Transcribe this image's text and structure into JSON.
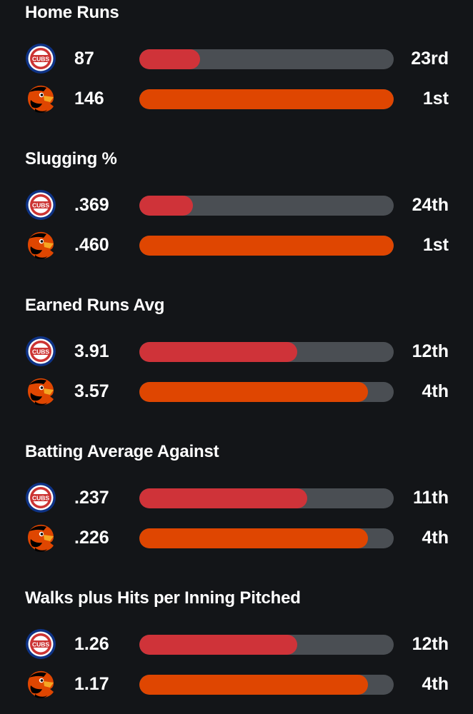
{
  "teams": {
    "cubs": {
      "logo_icon": "cubs-logo-icon",
      "logo_text": "CUBS",
      "bar_color": "#cf3339"
    },
    "orioles": {
      "logo_icon": "orioles-logo-icon",
      "bar_color": "#df4601"
    }
  },
  "colors": {
    "background": "#131518",
    "track": "#4a4e53"
  },
  "stats": [
    {
      "title": "Home Runs",
      "rows": [
        {
          "team": "cubs",
          "value": "87",
          "fill_fraction": 0.24,
          "rank": "23rd"
        },
        {
          "team": "orioles",
          "value": "146",
          "fill_fraction": 1.0,
          "rank": "1st"
        }
      ]
    },
    {
      "title": "Slugging %",
      "rows": [
        {
          "team": "cubs",
          "value": ".369",
          "fill_fraction": 0.21,
          "rank": "24th"
        },
        {
          "team": "orioles",
          "value": ".460",
          "fill_fraction": 1.0,
          "rank": "1st"
        }
      ]
    },
    {
      "title": "Earned Runs Avg",
      "rows": [
        {
          "team": "cubs",
          "value": "3.91",
          "fill_fraction": 0.62,
          "rank": "12th"
        },
        {
          "team": "orioles",
          "value": "3.57",
          "fill_fraction": 0.9,
          "rank": "4th"
        }
      ]
    },
    {
      "title": "Batting Average Against",
      "rows": [
        {
          "team": "cubs",
          "value": ".237",
          "fill_fraction": 0.66,
          "rank": "11th"
        },
        {
          "team": "orioles",
          "value": ".226",
          "fill_fraction": 0.9,
          "rank": "4th"
        }
      ]
    },
    {
      "title": "Walks plus Hits per Inning Pitched",
      "rows": [
        {
          "team": "cubs",
          "value": "1.26",
          "fill_fraction": 0.62,
          "rank": "12th"
        },
        {
          "team": "orioles",
          "value": "1.17",
          "fill_fraction": 0.9,
          "rank": "4th"
        }
      ]
    }
  ]
}
